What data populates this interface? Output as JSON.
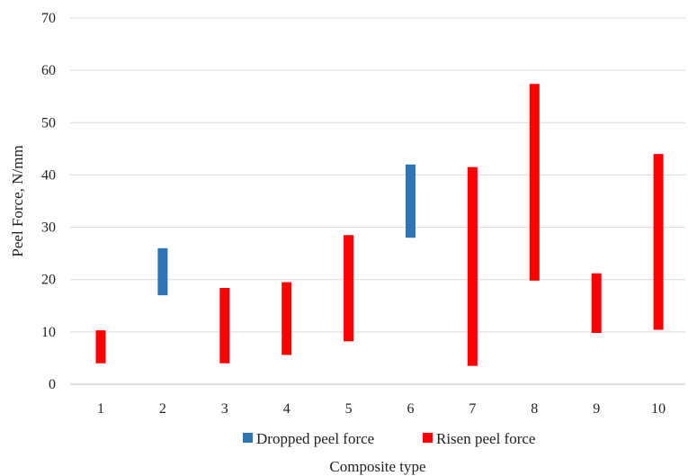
{
  "chart_data": {
    "type": "bar",
    "subtype": "floating-range",
    "title": "",
    "xlabel": "Composite type",
    "ylabel": "Peel Force, N/mm",
    "ylim": [
      0,
      70
    ],
    "yticks": [
      0,
      10,
      20,
      30,
      40,
      50,
      60,
      70
    ],
    "grid": true,
    "legend_position": "bottom",
    "categories": [
      "1",
      "2",
      "3",
      "4",
      "5",
      "6",
      "7",
      "8",
      "9",
      "10"
    ],
    "series": [
      {
        "name": "Dropped peel force",
        "color": "#2E75B6",
        "ranges": [
          null,
          [
            17,
            26
          ],
          null,
          null,
          null,
          [
            28,
            42
          ],
          null,
          null,
          null,
          null
        ]
      },
      {
        "name": "Risen peel force",
        "color": "#FF0000",
        "ranges": [
          [
            4,
            10.3
          ],
          null,
          [
            4,
            18.4
          ],
          [
            5.6,
            19.5
          ],
          [
            8.2,
            28.5
          ],
          null,
          [
            3.5,
            41.5
          ],
          [
            19.8,
            57.4
          ],
          [
            9.8,
            21.2
          ],
          [
            10.4,
            44
          ]
        ]
      }
    ]
  }
}
